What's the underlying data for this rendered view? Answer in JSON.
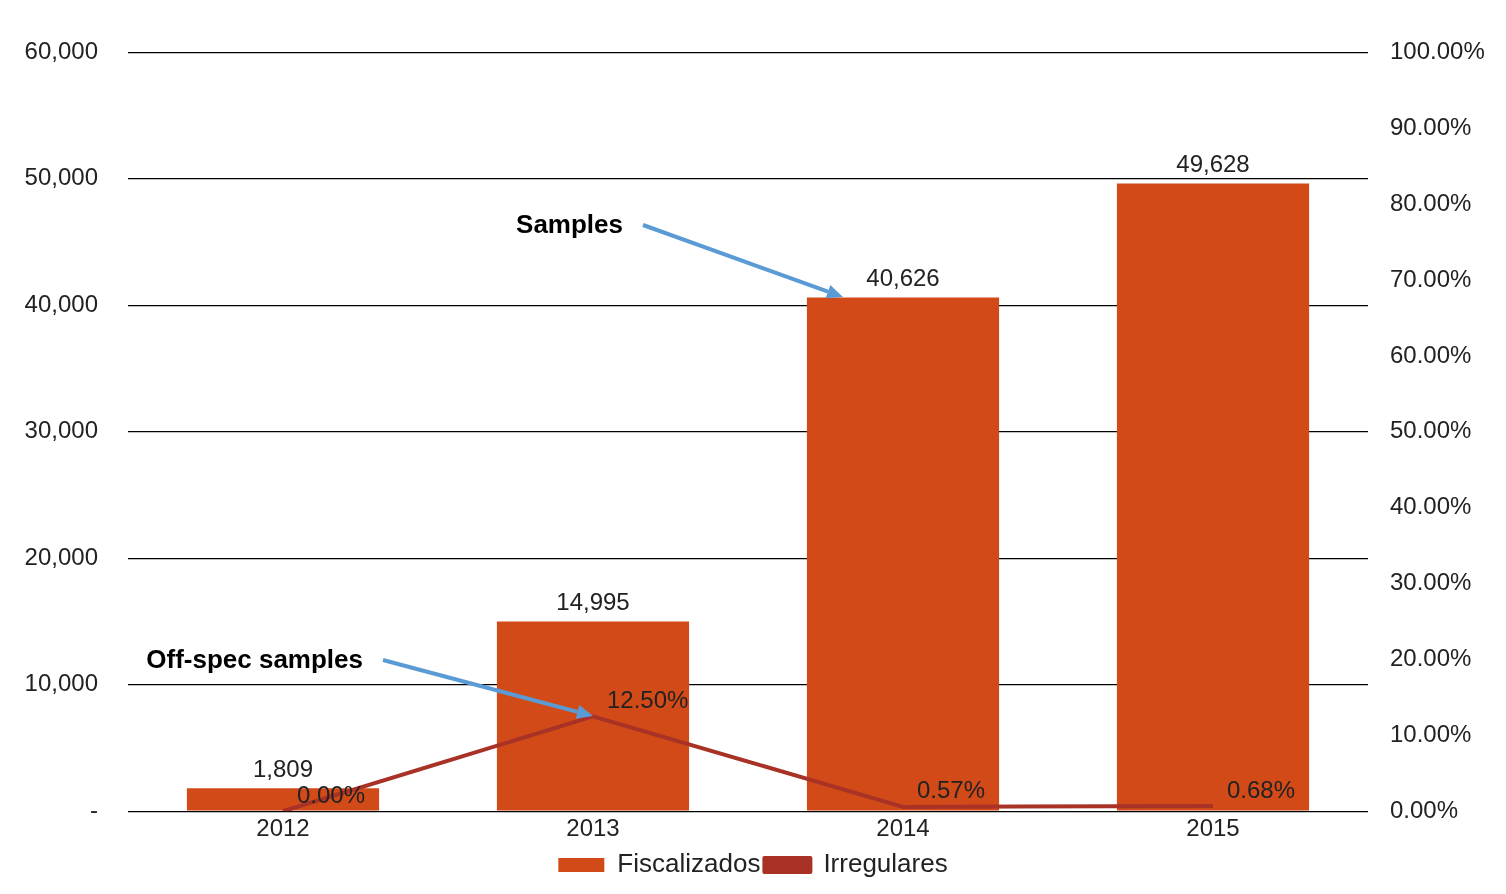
{
  "chart_data": {
    "type": "bar",
    "categories": [
      "2012",
      "2013",
      "2014",
      "2015"
    ],
    "series": [
      {
        "name": "Fiscalizados",
        "color": "#d24a18",
        "values": [
          1809,
          14995,
          40626,
          49628
        ],
        "value_labels": [
          "1,809",
          "14,995",
          "40,626",
          "49,628"
        ]
      },
      {
        "name": "Irregulares",
        "type": "line",
        "axis": "y2",
        "color": "#a83226",
        "values": [
          0,
          12.5,
          0.57,
          0.68
        ],
        "value_labels": [
          "0.00%",
          "12.50%",
          "0.57%",
          "0.68%"
        ]
      }
    ],
    "ylim": [
      0,
      60000
    ],
    "yticks": [
      {
        "value": 0,
        "label": "-"
      },
      {
        "value": 10000,
        "label": "10,000"
      },
      {
        "value": 20000,
        "label": "20,000"
      },
      {
        "value": 30000,
        "label": "30,000"
      },
      {
        "value": 40000,
        "label": "40,000"
      },
      {
        "value": 50000,
        "label": "50,000"
      },
      {
        "value": 60000,
        "label": "60,000"
      }
    ],
    "y2lim": [
      0,
      100
    ],
    "y2ticks": [
      {
        "value": 0,
        "label": "0.00%"
      },
      {
        "value": 10,
        "label": "10.00%"
      },
      {
        "value": 20,
        "label": "20.00%"
      },
      {
        "value": 30,
        "label": "30.00%"
      },
      {
        "value": 40,
        "label": "40.00%"
      },
      {
        "value": 50,
        "label": "50.00%"
      },
      {
        "value": 60,
        "label": "60.00%"
      },
      {
        "value": 70,
        "label": "70.00%"
      },
      {
        "value": 80,
        "label": "80.00%"
      },
      {
        "value": 90,
        "label": "90.00%"
      },
      {
        "value": 100,
        "label": "100.00%"
      }
    ],
    "grid": "y",
    "legend": "bottom",
    "marker": "none",
    "annotations": [
      "Samples",
      "Off-spec samples"
    ]
  }
}
